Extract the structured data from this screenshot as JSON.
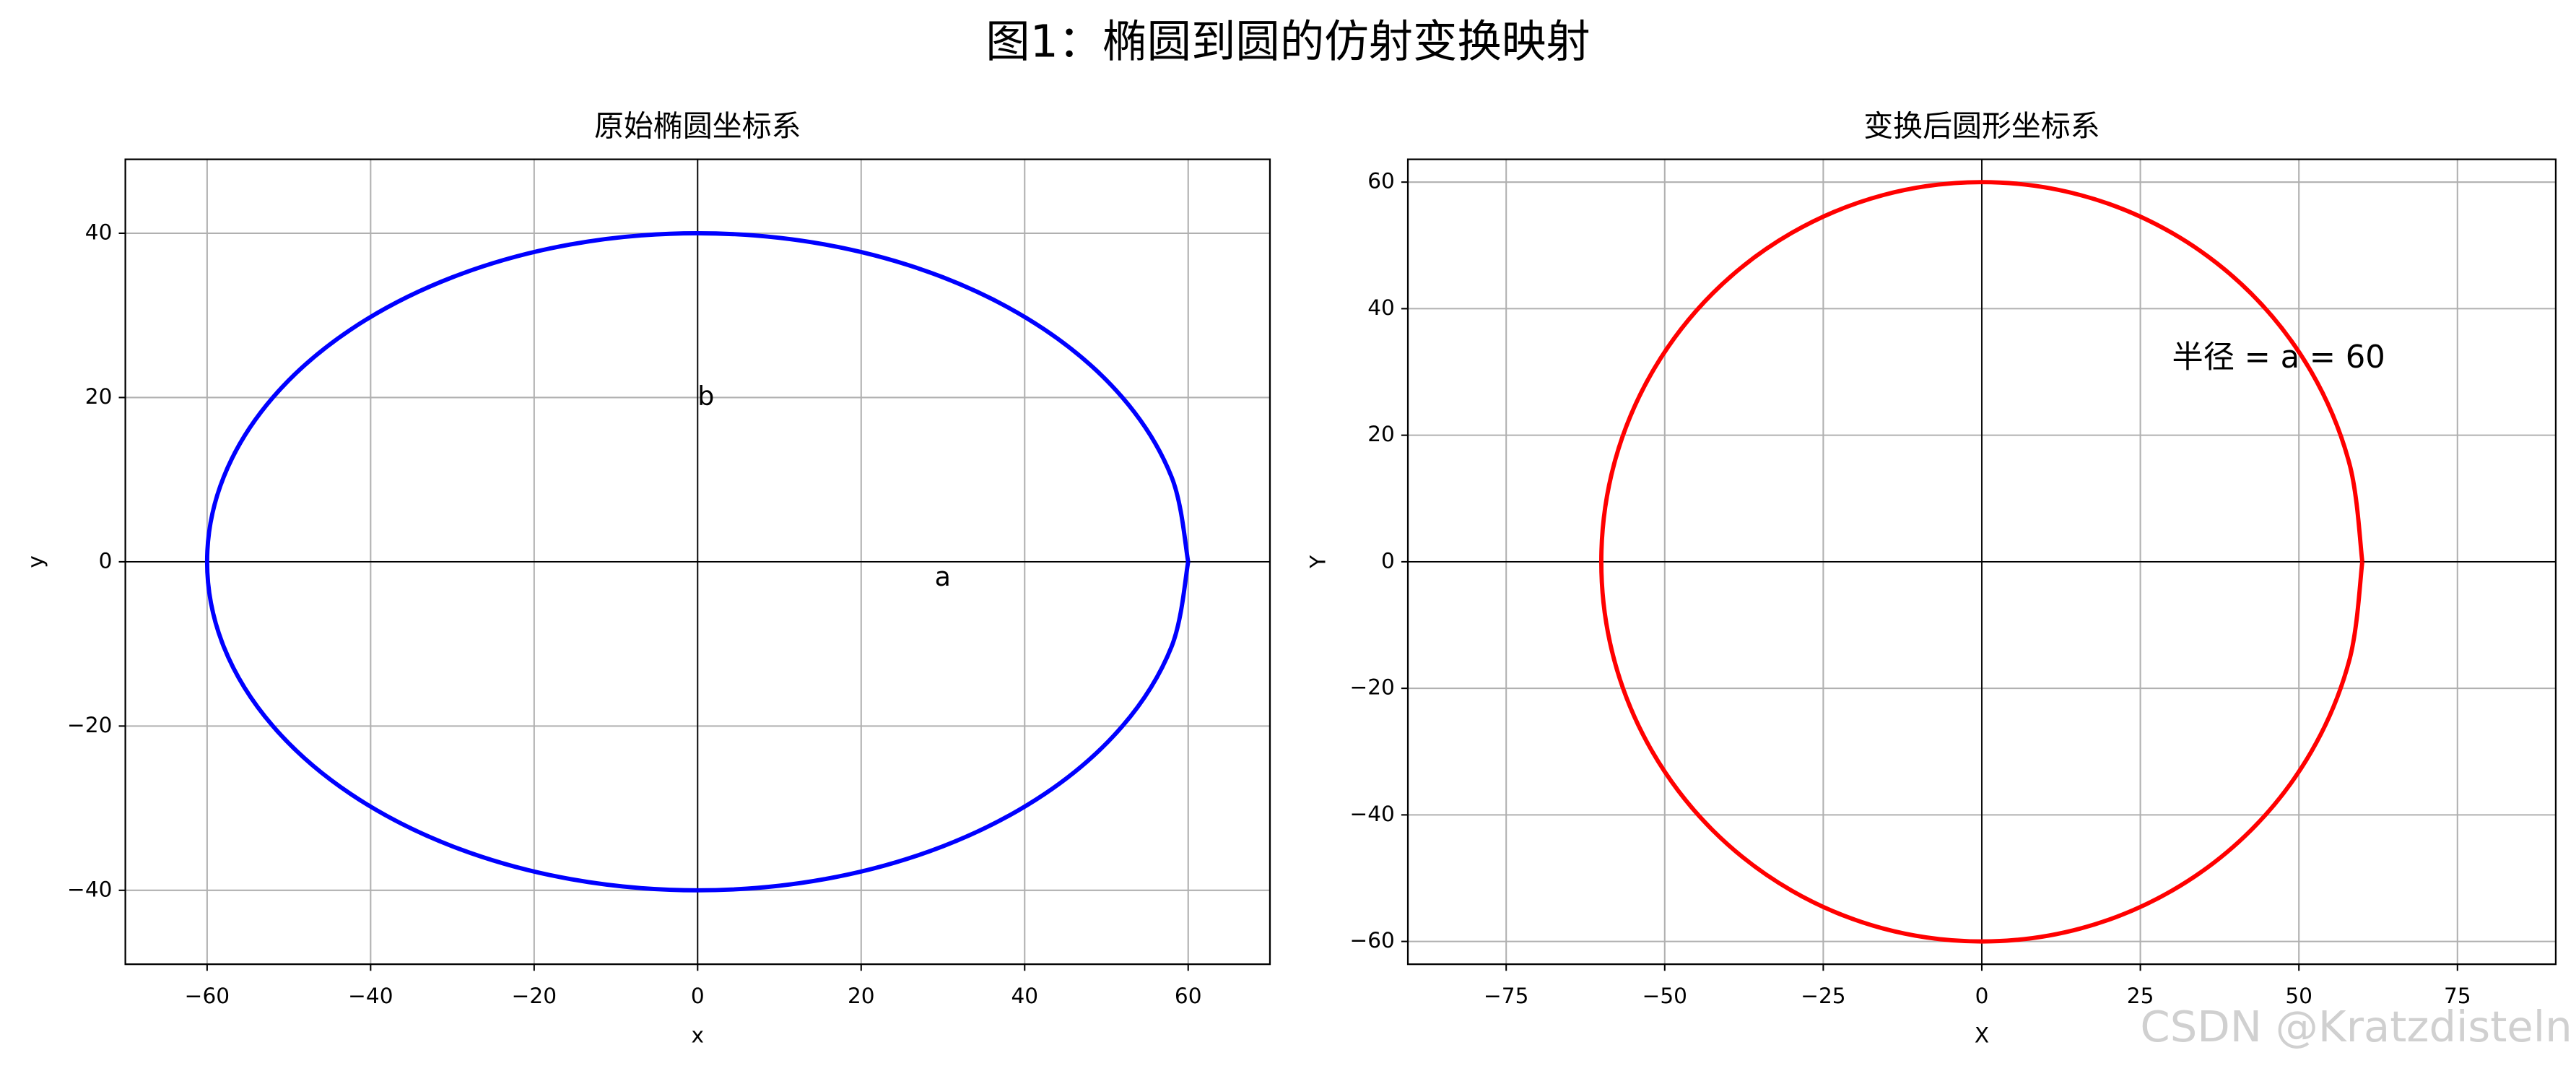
{
  "title": "图1：椭圆到圆的仿射变换映射",
  "watermark": "CSDN @Kratzdisteln",
  "chart_data": [
    {
      "type": "line",
      "title": "原始椭圆坐标系",
      "xlabel": "x",
      "ylabel": "y",
      "x": [
        60,
        57.96,
        51.96,
        42.43,
        30,
        15.53,
        0,
        -15.53,
        -30,
        -42.43,
        -51.96,
        -57.96,
        -60,
        -57.96,
        -51.96,
        -42.43,
        -30,
        -15.53,
        0,
        15.53,
        30,
        42.43,
        51.96,
        57.96,
        60
      ],
      "series": [
        {
          "color": "#0000ff",
          "values": [
            0,
            10.35,
            20,
            28.28,
            34.64,
            38.64,
            40,
            38.64,
            34.64,
            28.28,
            20,
            10.35,
            0,
            -10.35,
            -20,
            -28.28,
            -34.64,
            -38.64,
            -40,
            -38.64,
            -34.64,
            -28.28,
            -20,
            -10.35,
            0
          ]
        }
      ],
      "xlim": [
        -70,
        70
      ],
      "ylim": [
        -49,
        49
      ],
      "xticks": [
        {
          "value": -60,
          "label": "−60"
        },
        {
          "value": -40,
          "label": "−40"
        },
        {
          "value": -20,
          "label": "−20"
        },
        0,
        20,
        40,
        60
      ],
      "yticks": [
        {
          "value": -40,
          "label": "−40"
        },
        {
          "value": -20,
          "label": "−20"
        },
        0,
        20,
        40
      ],
      "grid": true,
      "annotations": [
        {
          "text": "b",
          "x": 0,
          "y": 20
        },
        {
          "text": "a",
          "x": 29,
          "y": -2
        }
      ]
    },
    {
      "type": "line",
      "title": "变换后圆形坐标系",
      "xlabel": "X",
      "ylabel": "Y",
      "x": [
        60,
        57.96,
        51.96,
        42.43,
        30,
        15.53,
        0,
        -15.53,
        -30,
        -42.43,
        -51.96,
        -57.96,
        -60,
        -57.96,
        -51.96,
        -42.43,
        -30,
        -15.53,
        0,
        15.53,
        30,
        42.43,
        51.96,
        57.96,
        60
      ],
      "series": [
        {
          "color": "#ff0000",
          "values": [
            0,
            15.53,
            30,
            42.43,
            51.96,
            57.96,
            60,
            57.96,
            51.96,
            42.43,
            30,
            15.53,
            0,
            -15.53,
            -30,
            -42.43,
            -51.96,
            -57.96,
            -60,
            -57.96,
            -51.96,
            -42.43,
            -30,
            -15.53,
            0
          ]
        }
      ],
      "xlim": [
        -90.5,
        90.5
      ],
      "ylim": [
        -63.6,
        63.6
      ],
      "xticks": [
        {
          "value": -75,
          "label": "−75"
        },
        {
          "value": -50,
          "label": "−50"
        },
        {
          "value": -25,
          "label": "−25"
        },
        0,
        25,
        50,
        75
      ],
      "yticks": [
        {
          "value": -60,
          "label": "−60"
        },
        {
          "value": -40,
          "label": "−40"
        },
        {
          "value": -20,
          "label": "−20"
        },
        0,
        20,
        40,
        60
      ],
      "grid": true,
      "annotations": [
        {
          "text": "半径 = a = 60",
          "x": 30,
          "y": 32
        }
      ]
    }
  ]
}
